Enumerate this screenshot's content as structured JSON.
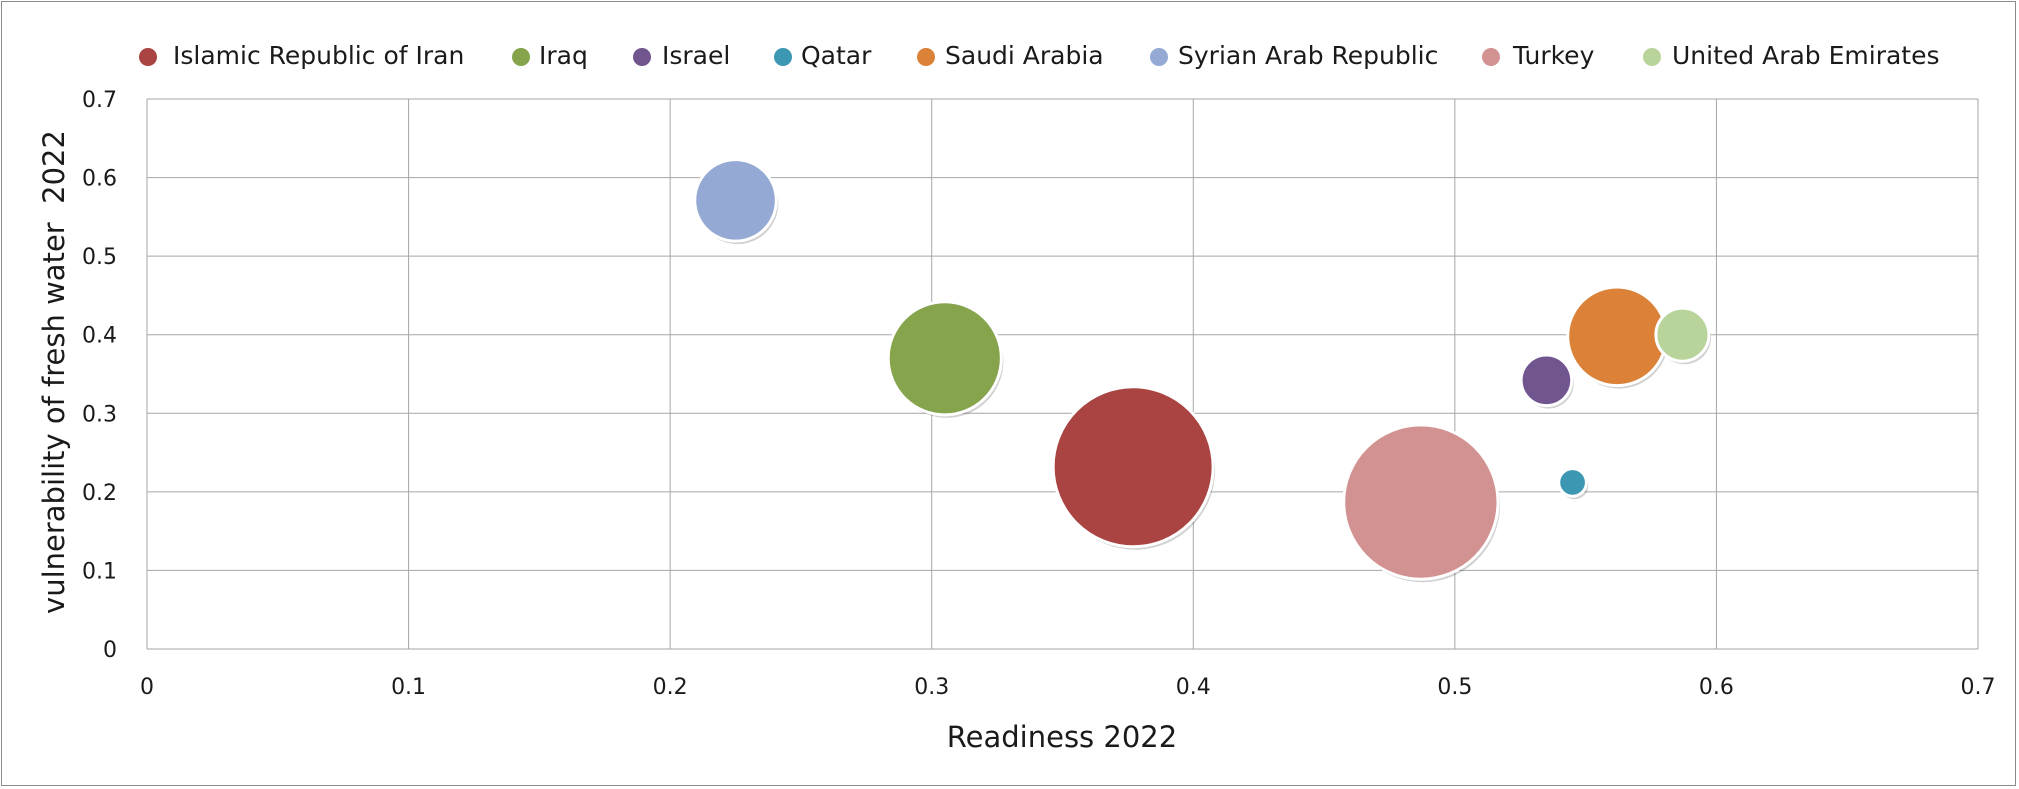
{
  "chart_data": {
    "type": "bubble",
    "title": "",
    "xlabel": "Readiness 2022",
    "ylabel": "vulnerability of fresh water  2022",
    "xlim": [
      0,
      0.7
    ],
    "ylim": [
      0,
      0.7
    ],
    "x_ticks": [
      "0",
      "0.1",
      "0.2",
      "0.3",
      "0.4",
      "0.5",
      "0.6",
      "0.7"
    ],
    "y_ticks": [
      "0",
      "0.1",
      "0.2",
      "0.3",
      "0.4",
      "0.5",
      "0.6",
      "0.7"
    ],
    "grid": true,
    "legend_position": "top",
    "series": [
      {
        "name": "Islamic Republic of Iran",
        "color": "#a94442",
        "x": 0.377,
        "y": 0.232,
        "size": 100
      },
      {
        "name": "Iraq",
        "color": "#86a44c",
        "x": 0.305,
        "y": 0.37,
        "size": 50
      },
      {
        "name": "Israel",
        "color": "#71558f",
        "x": 0.535,
        "y": 0.342,
        "size": 10
      },
      {
        "name": "Qatar",
        "color": "#3b97b2",
        "x": 0.545,
        "y": 0.212,
        "size": 3
      },
      {
        "name": "Saudi Arabia",
        "color": "#db8238",
        "x": 0.562,
        "y": 0.398,
        "size": 38
      },
      {
        "name": "Syrian Arab Republic",
        "color": "#94a9d3",
        "x": 0.225,
        "y": 0.571,
        "size": 26
      },
      {
        "name": "Turkey",
        "color": "#d39292",
        "x": 0.487,
        "y": 0.187,
        "size": 93
      },
      {
        "name": "United Arab Emirates",
        "color": "#b9d49b",
        "x": 0.587,
        "y": 0.4,
        "size": 11
      }
    ]
  }
}
